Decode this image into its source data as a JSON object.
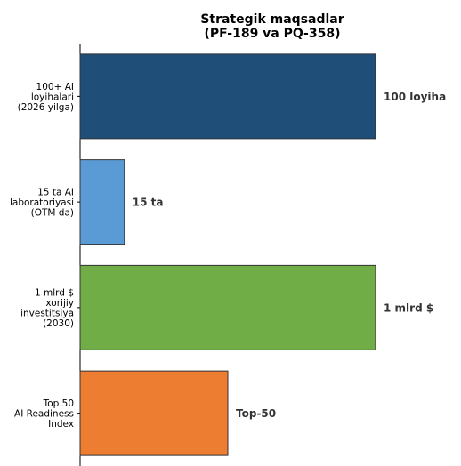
{
  "chart_data": {
    "type": "bar",
    "orientation": "horizontal",
    "title": "Strategik maqsadlar\n(PF-189 va PQ-358)",
    "xlabel": "",
    "ylabel": "",
    "categories": [
      "100+ AI\nloyihalari\n(2026 yilga)",
      "15 ta AI\nlaboratoriyasi\n(OTM da)",
      "1 mlrd $\nxorijiy\ninvestitsiya\n(2030)",
      "Top 50\nAI Readiness\nIndex"
    ],
    "values": [
      100,
      15,
      100,
      50
    ],
    "data_labels": [
      "100 loyiha",
      "15 ta",
      "1 mlrd $",
      "Top-50"
    ],
    "colors": [
      "#1f4e79",
      "#5b9bd5",
      "#70ad47",
      "#ed7d31"
    ],
    "xlim": [
      0,
      100
    ],
    "x_axis_visible": false,
    "grid": false,
    "legend": "none"
  }
}
